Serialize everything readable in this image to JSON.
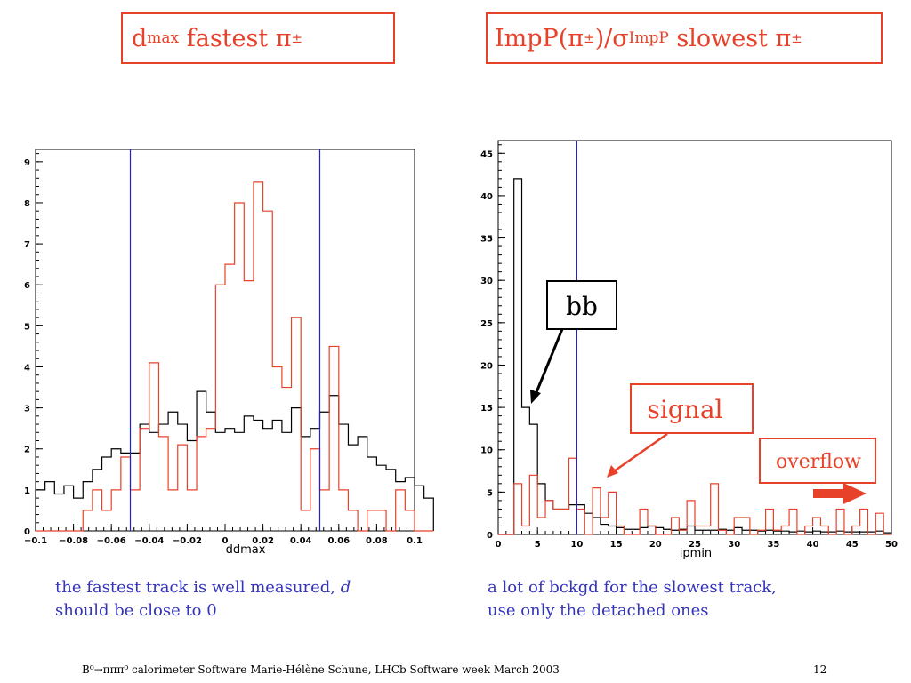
{
  "titles": {
    "left": {
      "main": "d",
      "sub": "max",
      "rest": " fastest π",
      "sup": "±"
    },
    "right": {
      "pre": "ImpP(π",
      "sup1": "±",
      "mid": ")/σ",
      "sub": "ImpP",
      "rest": " slowest π",
      "sup2": "±"
    }
  },
  "captions": {
    "left_line1": "the fastest track is well measured, ",
    "left_italic": "d",
    "left_line2": "should be close to 0",
    "right_line1": "a lot of bckgd for the slowest track,",
    "right_line2": "use only the detached ones"
  },
  "footer": {
    "text": "B⁰→πππ⁰ calorimeter Software Marie-Hélène Schune, LHCb Software week March 2003",
    "page": "12"
  },
  "annotations": {
    "bb": "bb",
    "signal": "signal",
    "overflow": "overflow"
  },
  "colors": {
    "signal": "#e8412a",
    "background": "#000000",
    "cut_line": "#2222cc",
    "caption": "#3333bb"
  },
  "chart_data": [
    {
      "type": "histogram",
      "title": "",
      "xlabel": "ddmax",
      "ylabel": "",
      "xlim": [
        -0.1,
        0.1
      ],
      "ylim": [
        0,
        9.3
      ],
      "bin_width": 0.005,
      "x_ticks": [
        -0.1,
        -0.08,
        -0.06,
        -0.04,
        -0.02,
        0,
        0.02,
        0.04,
        0.06,
        0.08,
        0.1
      ],
      "x_tick_labels": [
        "−0.1",
        "−0.08",
        "−0.06",
        "−0.04",
        "−0.02",
        "0",
        "0.02",
        "0.04",
        "0.06",
        "0.08",
        "0.1"
      ],
      "y_ticks": [
        0,
        1,
        2,
        3,
        4,
        5,
        6,
        7,
        8,
        9
      ],
      "cut_lines": [
        -0.05,
        0.05
      ],
      "series": [
        {
          "color": "black",
          "values": [
            1,
            1.2,
            0.9,
            1.1,
            0.8,
            1.2,
            1.5,
            1.8,
            2.0,
            1.9,
            1.9,
            2.6,
            2.4,
            2.6,
            2.9,
            2.6,
            2.2,
            3.4,
            2.9,
            2.4,
            2.5,
            2.4,
            2.8,
            2.7,
            2.5,
            2.7,
            2.4,
            3.0,
            2.3,
            2.5,
            2.9,
            3.3,
            2.6,
            2.1,
            2.3,
            1.8,
            1.6,
            1.5,
            1.2,
            1.3,
            1.1,
            0.8
          ]
        },
        {
          "color": "red",
          "values": [
            0,
            0,
            0,
            0,
            0,
            0.5,
            1.0,
            0.5,
            1.0,
            1.8,
            1.0,
            2.5,
            4.1,
            2.3,
            1.0,
            2.1,
            1.0,
            2.3,
            2.5,
            6.0,
            6.5,
            8.0,
            6.1,
            8.5,
            7.8,
            4.0,
            3.5,
            5.2,
            0.5,
            2.0,
            1.0,
            4.5,
            1.0,
            0.5,
            0,
            0.5,
            0.5,
            0,
            1.0,
            0.5,
            0,
            0
          ]
        }
      ]
    },
    {
      "type": "histogram",
      "title": "",
      "xlabel": "ipmin",
      "ylabel": "",
      "xlim": [
        0,
        50
      ],
      "ylim": [
        0,
        46.5
      ],
      "bin_width": 1,
      "x_ticks": [
        0,
        5,
        10,
        15,
        20,
        25,
        30,
        35,
        40,
        45,
        50
      ],
      "y_ticks": [
        0,
        5,
        10,
        15,
        20,
        25,
        30,
        35,
        40,
        45
      ],
      "cut_lines": [
        10
      ],
      "series": [
        {
          "color": "black",
          "values": [
            0,
            0,
            42,
            15,
            13,
            6,
            4,
            3,
            3,
            3.5,
            3.5,
            2.5,
            2,
            1.2,
            1,
            0.8,
            0.6,
            0.6,
            0.8,
            1,
            0.8,
            0.6,
            0.5,
            0.6,
            1,
            0.5,
            0.5,
            0.5,
            0.6,
            0.5,
            0.8,
            0.5,
            0.5,
            0.4,
            0.5,
            0.4,
            0.4,
            0.3,
            0.4,
            0.3,
            0.4,
            0.3,
            0.3,
            0.4,
            0.3,
            0.3,
            0.3,
            0.3,
            0.4,
            0.2
          ]
        },
        {
          "color": "red",
          "values": [
            0,
            0,
            6,
            1,
            7,
            2,
            4,
            3,
            3,
            9,
            3,
            0,
            5.5,
            2,
            5,
            1,
            0,
            0,
            3,
            1,
            0,
            0,
            2,
            0.5,
            4,
            1,
            1,
            6,
            0.5,
            0,
            2,
            2,
            0,
            0.5,
            3,
            0.5,
            1,
            3,
            0,
            1,
            2,
            1,
            0,
            3,
            0,
            1,
            3,
            0,
            2.5,
            0
          ]
        }
      ]
    }
  ]
}
